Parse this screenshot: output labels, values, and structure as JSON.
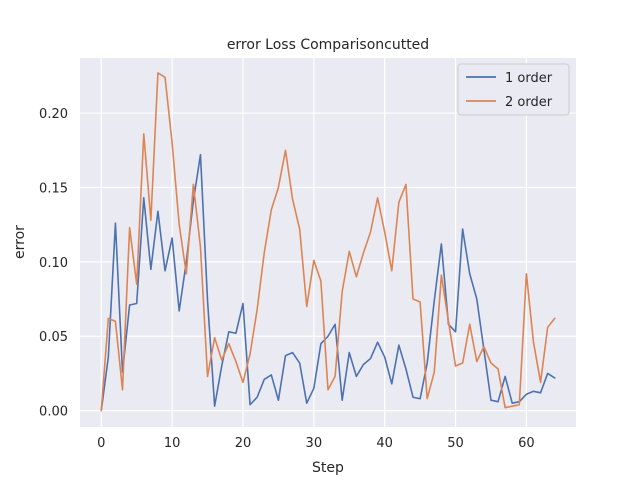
{
  "chart_data": {
    "type": "line",
    "title": "error Loss Comparisoncutted",
    "xlabel": "Step",
    "ylabel": "error",
    "xlim": [
      -3,
      67
    ],
    "ylim": [
      -0.011,
      0.237
    ],
    "xticks": [
      0,
      10,
      20,
      30,
      40,
      50,
      60
    ],
    "yticks": [
      0.0,
      0.05,
      0.1,
      0.15,
      0.2
    ],
    "ytick_labels": [
      "0.00",
      "0.05",
      "0.10",
      "0.15",
      "0.20"
    ],
    "grid": true,
    "legend_position": "top-right",
    "series": [
      {
        "name": "1 order",
        "color": "#4c72b0",
        "values": [
          0.0,
          0.036,
          0.126,
          0.026,
          0.071,
          0.072,
          0.143,
          0.095,
          0.134,
          0.094,
          0.116,
          0.067,
          0.1,
          0.141,
          0.172,
          0.074,
          0.003,
          0.03,
          0.053,
          0.052,
          0.072,
          0.004,
          0.009,
          0.021,
          0.024,
          0.007,
          0.037,
          0.039,
          0.032,
          0.005,
          0.015,
          0.045,
          0.05,
          0.058,
          0.007,
          0.039,
          0.023,
          0.031,
          0.035,
          0.046,
          0.036,
          0.018,
          0.044,
          0.028,
          0.009,
          0.008,
          0.032,
          0.074,
          0.112,
          0.058,
          0.053,
          0.122,
          0.092,
          0.075,
          0.041,
          0.007,
          0.006,
          0.023,
          0.005,
          0.006,
          0.011,
          0.013,
          0.012,
          0.025,
          0.022
        ]
      },
      {
        "name": "2 order",
        "color": "#dd8452",
        "values": [
          0.0,
          0.062,
          0.06,
          0.014,
          0.123,
          0.085,
          0.186,
          0.128,
          0.227,
          0.224,
          0.18,
          0.125,
          0.092,
          0.152,
          0.11,
          0.023,
          0.049,
          0.034,
          0.045,
          0.033,
          0.019,
          0.038,
          0.068,
          0.106,
          0.135,
          0.15,
          0.175,
          0.142,
          0.122,
          0.07,
          0.101,
          0.087,
          0.014,
          0.023,
          0.08,
          0.107,
          0.09,
          0.106,
          0.12,
          0.143,
          0.12,
          0.094,
          0.14,
          0.152,
          0.075,
          0.073,
          0.008,
          0.026,
          0.091,
          0.06,
          0.03,
          0.032,
          0.058,
          0.033,
          0.043,
          0.032,
          0.028,
          0.002,
          0.003,
          0.004,
          0.092,
          0.046,
          0.019,
          0.056,
          0.062
        ]
      }
    ]
  }
}
